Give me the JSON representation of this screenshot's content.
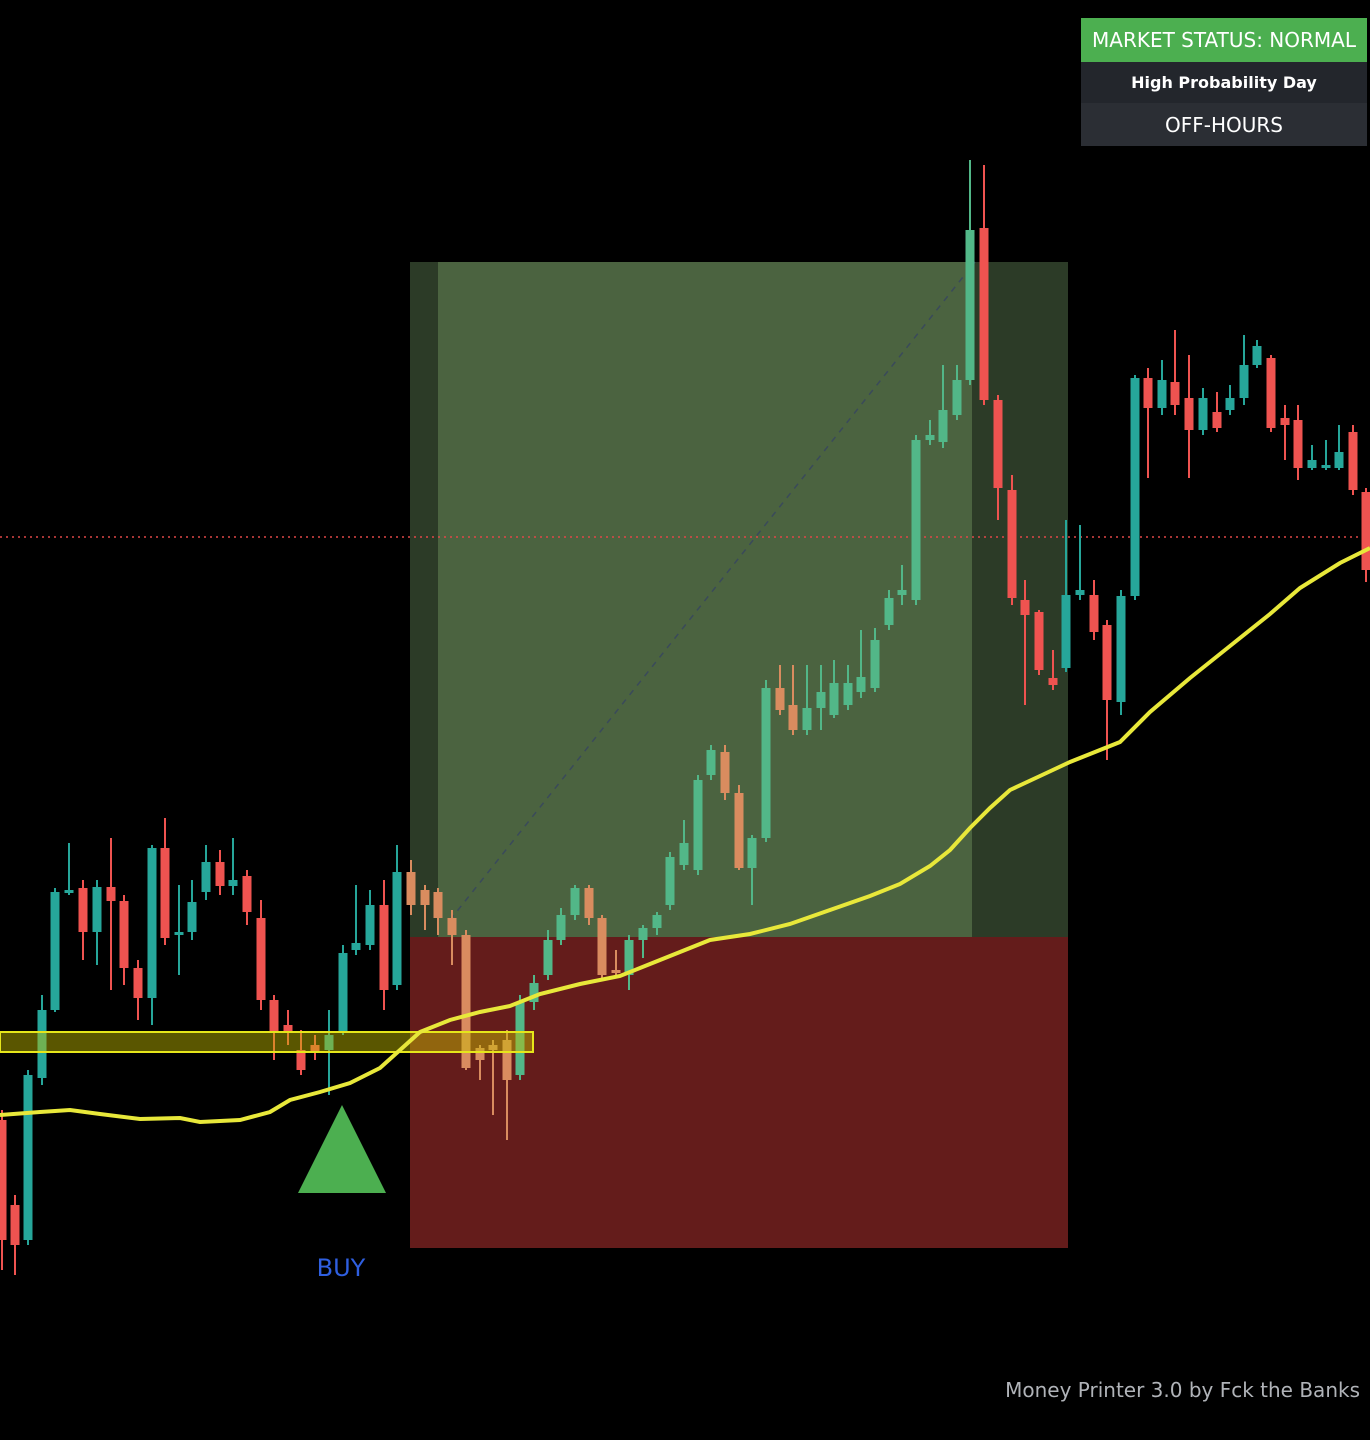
{
  "status_panel": {
    "header": "MARKET STATUS: NORMAL",
    "subheader": "High Probability Day",
    "session": "OFF-HOURS"
  },
  "signal": {
    "label": "BUY"
  },
  "watermark": "Money Printer 3.0 by Fck the Banks"
}
